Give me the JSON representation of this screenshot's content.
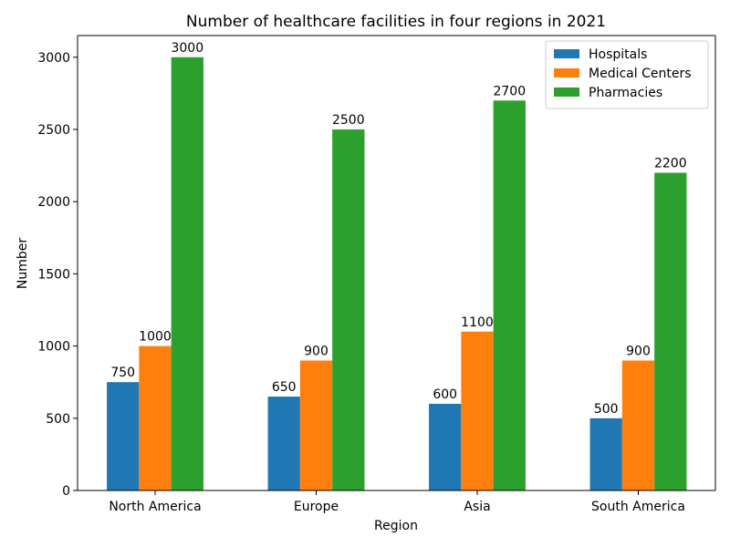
{
  "chart_data": {
    "type": "bar",
    "title": "Number of healthcare facilities in four regions in 2021",
    "xlabel": "Region",
    "ylabel": "Number",
    "categories": [
      "North America",
      "Europe",
      "Asia",
      "South America"
    ],
    "series": [
      {
        "name": "Hospitals",
        "values": [
          750,
          650,
          600,
          500
        ],
        "color": "#1f77b4"
      },
      {
        "name": "Medical Centers",
        "values": [
          1000,
          900,
          1100,
          900
        ],
        "color": "#ff7f0e"
      },
      {
        "name": "Pharmacies",
        "values": [
          3000,
          2500,
          2700,
          2200
        ],
        "color": "#2ca02c"
      }
    ],
    "ylim": [
      0,
      3150
    ],
    "yticks": [
      0,
      500,
      1000,
      1500,
      2000,
      2500,
      3000
    ],
    "grid": false,
    "legend_position": "top-right",
    "data_labels": true
  }
}
